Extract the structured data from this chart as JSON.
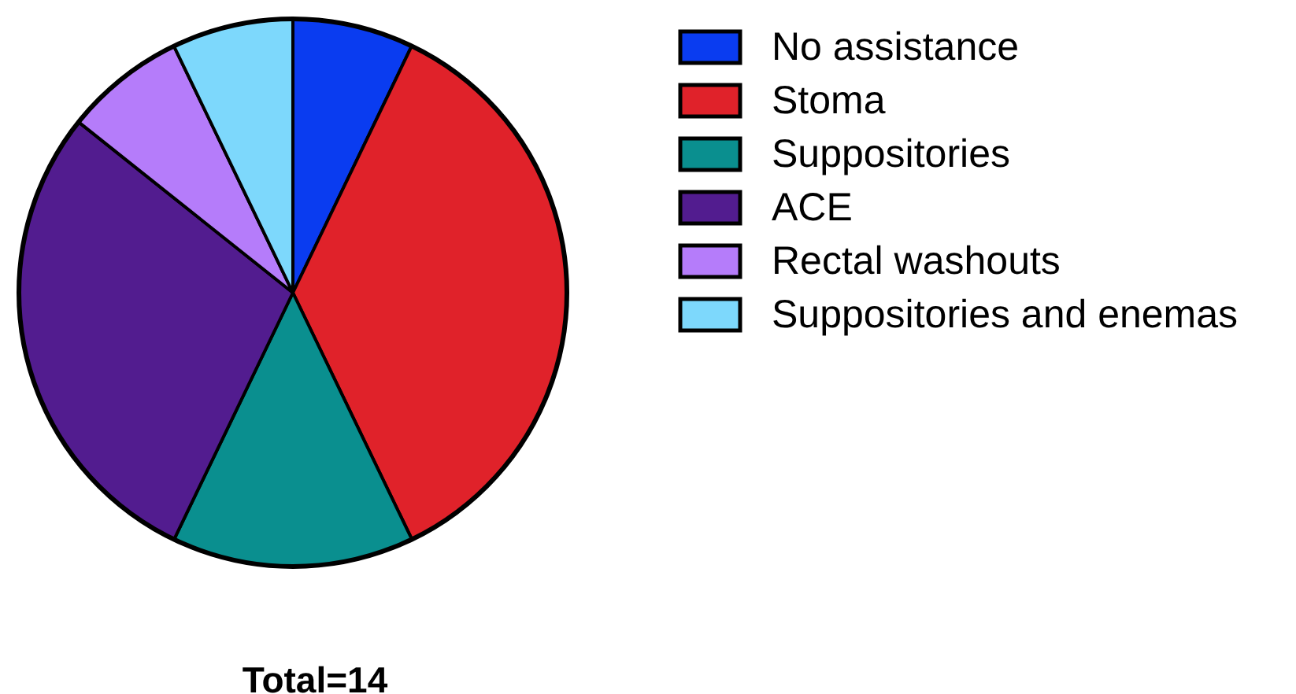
{
  "chart_data": {
    "type": "pie",
    "categories": [
      "No assistance",
      "Stoma",
      "Suppositories",
      "ACE",
      "Rectal washouts",
      "Suppositories and enemas"
    ],
    "values": [
      7.14,
      35.71,
      14.29,
      28.57,
      7.14,
      7.15
    ],
    "colors": [
      "#0a3cf0",
      "#e0222a",
      "#0a8f8f",
      "#521c8f",
      "#b57cfa",
      "#7dd8fc"
    ],
    "legend": "right",
    "annotations": [
      "Total=14"
    ]
  }
}
